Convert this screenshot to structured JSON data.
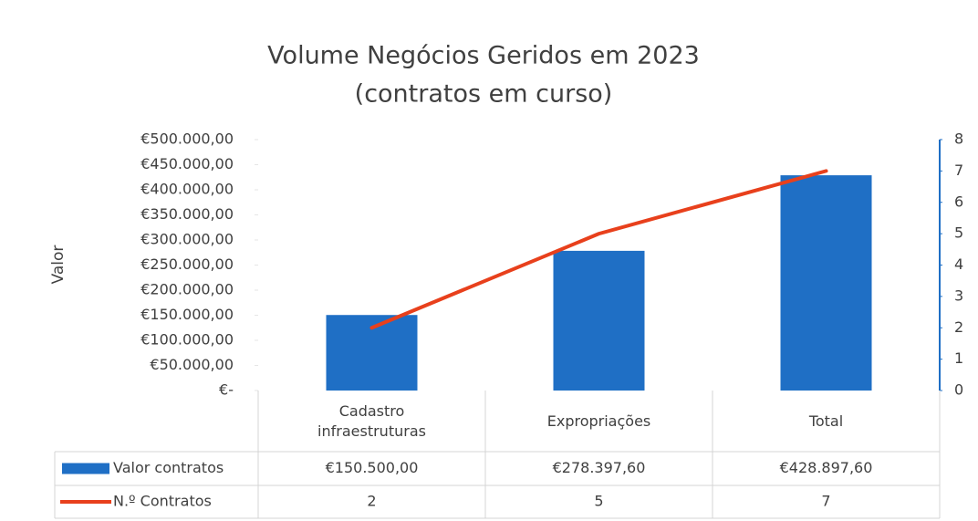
{
  "chart_data": {
    "type": "bar-line",
    "title": "Volume Negócios Geridos em 2023",
    "subtitle": "(contratos em curso)",
    "y_label": "Valor",
    "categories": [
      "Cadastro infraestruturas",
      "Expropriações",
      "Total"
    ],
    "series": [
      {
        "name": "Valor contratos",
        "type": "bar",
        "color": "#1f6fc5",
        "values": [
          150500,
          278397.6,
          428897.6
        ],
        "value_labels": [
          "€150.500,00",
          "€278.397,60",
          "€428.897,60"
        ]
      },
      {
        "name": "N.º Contratos",
        "type": "line",
        "color": "#e8401c",
        "axis": "y2",
        "values": [
          2,
          5,
          7
        ]
      }
    ],
    "ylim": [
      0,
      500000
    ],
    "yticks": [
      {
        "value": 0,
        "label": "€-"
      },
      {
        "value": 50000,
        "label": "€50.000,00"
      },
      {
        "value": 100000,
        "label": "€100.000,00"
      },
      {
        "value": 150000,
        "label": "€150.000,00"
      },
      {
        "value": 200000,
        "label": "€200.000,00"
      },
      {
        "value": 250000,
        "label": "€250.000,00"
      },
      {
        "value": 300000,
        "label": "€300.000,00"
      },
      {
        "value": 350000,
        "label": "€350.000,00"
      },
      {
        "value": 400000,
        "label": "€400.000,00"
      },
      {
        "value": 450000,
        "label": "€450.000,00"
      },
      {
        "value": 500000,
        "label": "€500.000,00"
      }
    ],
    "y2lim": [
      0,
      8
    ],
    "y2ticks": [
      0,
      1,
      2,
      3,
      4,
      5,
      6,
      7,
      8
    ],
    "axis_color": "#1f6fc5",
    "grid": false
  }
}
